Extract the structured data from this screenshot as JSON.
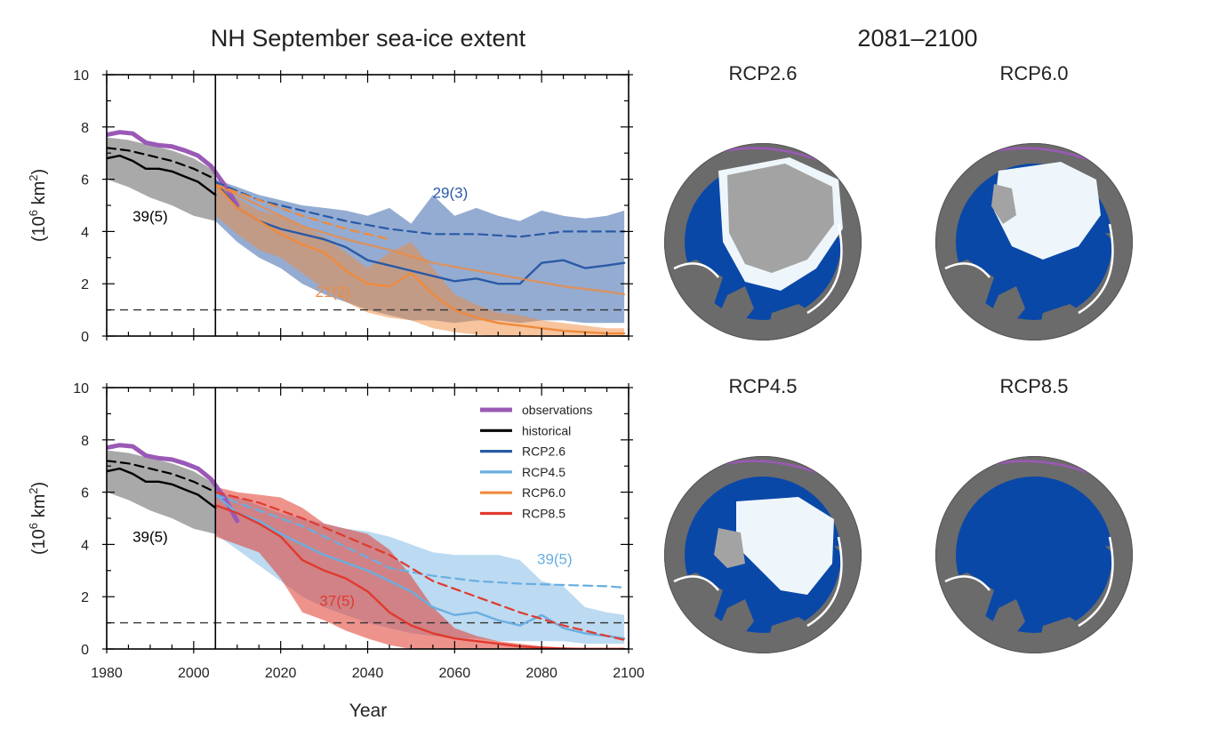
{
  "left_title": "NH September sea-ice extent",
  "right_title": "2081–2100",
  "x_axis_label": "Year",
  "y_axis_label_base": "(10",
  "y_axis_label_exp": "6",
  "y_axis_label_unit": " km",
  "y_axis_label_exp2": "2",
  "y_axis_label_close": ")",
  "colors": {
    "observations": "#9b59b6",
    "historical": "#000000",
    "rcp26": "#2a5aa6",
    "rcp45": "#6aaee0",
    "rcp60": "#f08a3c",
    "rcp85": "#e03a2e",
    "ocean": "#0a48a8",
    "land": "#6b6b6b",
    "ice_light": "#eef6fb",
    "ice_grey": "#a3a3a3"
  },
  "maps": [
    {
      "label": "RCP2.6"
    },
    {
      "label": "RCP6.0"
    },
    {
      "label": "RCP4.5"
    },
    {
      "label": "RCP8.5"
    }
  ],
  "chart_data": [
    {
      "type": "line",
      "panel": "top",
      "xlim": [
        1980,
        2100
      ],
      "ylim": [
        0,
        10
      ],
      "xticks": [
        1980,
        2000,
        2020,
        2040,
        2060,
        2080,
        2100
      ],
      "yticks": [
        0,
        2,
        4,
        6,
        8,
        10
      ],
      "reference_line": 1,
      "divider_year": 2005,
      "annotations": [
        {
          "text": "39(5)",
          "x": 1990,
          "y": 4.6,
          "color": "#000000"
        },
        {
          "text": "29(3)",
          "x": 2059,
          "y": 5.5,
          "color": "#2a5aa6"
        },
        {
          "text": "21(2)",
          "x": 2032,
          "y": 1.7,
          "color": "#f08a3c"
        }
      ],
      "series": [
        {
          "key": "observations",
          "style": "thick",
          "x": [
            1980,
            1983,
            1986,
            1989,
            1992,
            1995,
            1998,
            2001,
            2004,
            2007,
            2010
          ],
          "y": [
            7.7,
            7.8,
            7.75,
            7.4,
            7.3,
            7.25,
            7.1,
            6.9,
            6.5,
            5.8,
            5.0
          ]
        },
        {
          "key": "historical",
          "style": "solid",
          "x": [
            1980,
            1983,
            1986,
            1989,
            1992,
            1995,
            1998,
            2001,
            2005
          ],
          "y": [
            6.8,
            6.9,
            6.7,
            6.4,
            6.4,
            6.3,
            6.1,
            5.9,
            5.4
          ]
        },
        {
          "key": "historical",
          "style": "dashed",
          "x": [
            1980,
            1985,
            1990,
            1995,
            2000,
            2005
          ],
          "y": [
            7.2,
            7.1,
            6.9,
            6.7,
            6.4,
            6.0
          ]
        },
        {
          "key": "historical",
          "style": "band",
          "x": [
            1980,
            1985,
            1990,
            1995,
            2000,
            2005
          ],
          "upper": [
            7.6,
            7.5,
            7.3,
            7.1,
            6.8,
            6.3
          ],
          "lower": [
            6.0,
            5.7,
            5.3,
            5.0,
            4.6,
            4.4
          ]
        },
        {
          "key": "rcp26",
          "style": "band",
          "x": [
            2005,
            2010,
            2015,
            2020,
            2025,
            2030,
            2035,
            2040,
            2045,
            2050,
            2055,
            2060,
            2065,
            2070,
            2075,
            2080,
            2085,
            2090,
            2095,
            2099
          ],
          "upper": [
            6.0,
            5.7,
            5.4,
            5.2,
            5.0,
            4.9,
            4.8,
            4.6,
            4.9,
            4.3,
            5.4,
            4.6,
            4.9,
            4.6,
            4.4,
            4.8,
            4.6,
            4.5,
            4.6,
            4.8
          ],
          "lower": [
            4.4,
            3.6,
            3.0,
            2.6,
            2.0,
            1.6,
            1.3,
            1.0,
            0.8,
            0.6,
            0.6,
            0.5,
            0.6,
            0.6,
            0.5,
            0.6,
            0.6,
            0.5,
            0.5,
            0.5
          ]
        },
        {
          "key": "rcp60",
          "style": "band",
          "x": [
            2005,
            2010,
            2015,
            2020,
            2025,
            2030,
            2035,
            2040,
            2045,
            2050,
            2055,
            2060,
            2065,
            2070,
            2075,
            2080,
            2085,
            2090,
            2095,
            2099
          ],
          "upper": [
            5.8,
            5.3,
            4.8,
            4.6,
            4.2,
            3.8,
            3.2,
            2.6,
            3.2,
            3.6,
            2.6,
            1.6,
            1.2,
            0.9,
            0.8,
            0.6,
            0.5,
            0.4,
            0.3,
            0.3
          ],
          "lower": [
            4.6,
            3.9,
            3.3,
            3.0,
            2.4,
            1.8,
            1.3,
            0.9,
            0.7,
            0.6,
            0.3,
            0.15,
            0.05,
            0.0,
            0.0,
            0.0,
            0.0,
            0.0,
            0.0,
            0.0
          ]
        },
        {
          "key": "rcp26",
          "style": "solid",
          "x": [
            2005,
            2010,
            2015,
            2020,
            2025,
            2030,
            2035,
            2040,
            2045,
            2050,
            2055,
            2060,
            2065,
            2070,
            2075,
            2080,
            2085,
            2090,
            2095,
            2099
          ],
          "y": [
            5.9,
            4.9,
            4.4,
            4.1,
            3.9,
            3.7,
            3.4,
            2.9,
            2.7,
            2.5,
            2.3,
            2.1,
            2.2,
            2.0,
            2.0,
            2.8,
            2.9,
            2.6,
            2.7,
            2.8
          ]
        },
        {
          "key": "rcp26",
          "style": "dashed",
          "x": [
            2005,
            2015,
            2025,
            2035,
            2045,
            2055,
            2065,
            2075,
            2085,
            2095,
            2099
          ],
          "y": [
            5.9,
            5.2,
            4.8,
            4.4,
            4.1,
            3.9,
            3.9,
            3.8,
            4.0,
            4.0,
            4.0
          ]
        },
        {
          "key": "rcp60",
          "style": "solid",
          "x": [
            2005,
            2010,
            2015,
            2020,
            2025,
            2030,
            2035,
            2040,
            2045,
            2050,
            2055,
            2060,
            2065,
            2070,
            2075,
            2080,
            2085,
            2090,
            2095,
            2099
          ],
          "y": [
            5.8,
            4.9,
            4.4,
            3.9,
            3.5,
            3.2,
            2.5,
            2.0,
            1.9,
            2.4,
            1.6,
            1.0,
            0.7,
            0.5,
            0.4,
            0.3,
            0.2,
            0.15,
            0.1,
            0.1
          ]
        },
        {
          "key": "rcp60",
          "style": "solid_light",
          "x": [
            2005,
            2015,
            2025,
            2035,
            2045,
            2055,
            2065,
            2075,
            2085,
            2095,
            2099
          ],
          "y": [
            5.8,
            5.0,
            4.2,
            3.7,
            3.3,
            2.8,
            2.5,
            2.2,
            1.9,
            1.7,
            1.6
          ]
        },
        {
          "key": "rcp60",
          "style": "dashed",
          "x": [
            2005,
            2015,
            2025,
            2035,
            2045
          ],
          "y": [
            5.8,
            5.2,
            4.6,
            4.1,
            3.7
          ]
        }
      ]
    },
    {
      "type": "line",
      "panel": "bottom",
      "xlim": [
        1980,
        2100
      ],
      "ylim": [
        0,
        10
      ],
      "xticks": [
        1980,
        2000,
        2020,
        2040,
        2060,
        2080,
        2100
      ],
      "yticks": [
        0,
        2,
        4,
        6,
        8,
        10
      ],
      "reference_line": 1,
      "divider_year": 2005,
      "legend": {
        "placement": "top-right",
        "entries": [
          {
            "key": "observations",
            "label": "observations"
          },
          {
            "key": "historical",
            "label": "historical"
          },
          {
            "key": "rcp26",
            "label": "RCP2.6"
          },
          {
            "key": "rcp45",
            "label": "RCP4.5"
          },
          {
            "key": "rcp60",
            "label": "RCP6.0"
          },
          {
            "key": "rcp85",
            "label": "RCP8.5"
          }
        ]
      },
      "annotations": [
        {
          "text": "39(5)",
          "x": 1990,
          "y": 4.3,
          "color": "#000000"
        },
        {
          "text": "39(5)",
          "x": 2083,
          "y": 3.45,
          "color": "#6aaee0"
        },
        {
          "text": "37(5)",
          "x": 2033,
          "y": 1.85,
          "color": "#e03a2e"
        }
      ],
      "series": [
        {
          "key": "observations",
          "style": "thick",
          "x": [
            1980,
            1983,
            1986,
            1989,
            1992,
            1995,
            1998,
            2001,
            2004,
            2007,
            2010
          ],
          "y": [
            7.7,
            7.8,
            7.75,
            7.4,
            7.3,
            7.25,
            7.1,
            6.9,
            6.5,
            5.8,
            4.9
          ]
        },
        {
          "key": "historical",
          "style": "solid",
          "x": [
            1980,
            1983,
            1986,
            1989,
            1992,
            1995,
            1998,
            2001,
            2005
          ],
          "y": [
            6.8,
            6.9,
            6.7,
            6.4,
            6.4,
            6.3,
            6.1,
            5.9,
            5.4
          ]
        },
        {
          "key": "historical",
          "style": "dashed",
          "x": [
            1980,
            1985,
            1990,
            1995,
            2000,
            2005
          ],
          "y": [
            7.2,
            7.1,
            6.9,
            6.7,
            6.4,
            6.0
          ]
        },
        {
          "key": "historical",
          "style": "band",
          "x": [
            1980,
            1985,
            1990,
            1995,
            2000,
            2005
          ],
          "upper": [
            7.6,
            7.5,
            7.3,
            7.1,
            6.8,
            6.3
          ],
          "lower": [
            6.0,
            5.7,
            5.3,
            5.0,
            4.6,
            4.4
          ]
        },
        {
          "key": "rcp45",
          "style": "band",
          "x": [
            2005,
            2010,
            2015,
            2020,
            2025,
            2030,
            2035,
            2040,
            2045,
            2050,
            2055,
            2060,
            2065,
            2070,
            2075,
            2080,
            2085,
            2090,
            2095,
            2099
          ],
          "upper": [
            6.0,
            5.8,
            5.5,
            5.2,
            5.0,
            4.8,
            4.6,
            4.5,
            4.3,
            4.0,
            3.7,
            3.6,
            3.6,
            3.6,
            3.4,
            2.6,
            2.4,
            1.6,
            1.4,
            1.3
          ],
          "lower": [
            4.4,
            3.8,
            3.2,
            2.6,
            2.0,
            1.6,
            1.3,
            1.0,
            0.8,
            0.6,
            0.5,
            0.4,
            0.4,
            0.3,
            0.3,
            0.3,
            0.3,
            0.2,
            0.2,
            0.2
          ]
        },
        {
          "key": "rcp85",
          "style": "band",
          "x": [
            2005,
            2010,
            2015,
            2020,
            2025,
            2030,
            2035,
            2040,
            2045,
            2050,
            2055,
            2060,
            2065,
            2070,
            2075,
            2080,
            2085,
            2090,
            2095,
            2099
          ],
          "upper": [
            6.2,
            6.0,
            5.9,
            5.8,
            5.4,
            4.8,
            4.6,
            4.4,
            3.8,
            2.8,
            1.6,
            0.8,
            0.5,
            0.3,
            0.2,
            0.1,
            0.05,
            0.05,
            0.05,
            0.05
          ],
          "lower": [
            4.3,
            4.0,
            3.7,
            2.7,
            1.4,
            1.1,
            0.7,
            0.4,
            0.15,
            0.0,
            0.0,
            0.0,
            0.0,
            0.0,
            0.0,
            0.0,
            0.0,
            0.0,
            0.0,
            0.0
          ]
        },
        {
          "key": "rcp45",
          "style": "solid",
          "x": [
            2005,
            2010,
            2015,
            2020,
            2025,
            2030,
            2035,
            2040,
            2045,
            2050,
            2055,
            2060,
            2065,
            2070,
            2075,
            2080,
            2085,
            2090,
            2095,
            2099
          ],
          "y": [
            5.9,
            5.2,
            4.9,
            4.4,
            4.0,
            3.6,
            3.3,
            3.0,
            2.6,
            2.2,
            1.6,
            1.3,
            1.4,
            1.1,
            0.9,
            1.3,
            0.8,
            0.6,
            0.5,
            0.4
          ]
        },
        {
          "key": "rcp45",
          "style": "dashed",
          "x": [
            2005,
            2015,
            2025,
            2035,
            2045,
            2055,
            2065,
            2075,
            2085,
            2095,
            2099
          ],
          "y": [
            5.9,
            5.3,
            4.7,
            3.9,
            3.1,
            2.8,
            2.6,
            2.5,
            2.45,
            2.4,
            2.35
          ]
        },
        {
          "key": "rcp85",
          "style": "solid",
          "x": [
            2005,
            2010,
            2015,
            2020,
            2025,
            2030,
            2035,
            2040,
            2045,
            2050,
            2055,
            2060,
            2065,
            2070,
            2075,
            2080,
            2085,
            2090,
            2095,
            2099
          ],
          "y": [
            5.5,
            5.2,
            4.8,
            4.3,
            3.4,
            3.0,
            2.7,
            2.2,
            1.4,
            0.9,
            0.6,
            0.4,
            0.3,
            0.2,
            0.1,
            0.05,
            0.02,
            0.0,
            0.0,
            0.0
          ]
        },
        {
          "key": "rcp85",
          "style": "dashed",
          "x": [
            2005,
            2015,
            2025,
            2035,
            2045,
            2055,
            2065,
            2075,
            2085,
            2095,
            2099
          ],
          "y": [
            6.0,
            5.6,
            5.0,
            4.3,
            3.6,
            2.6,
            2.0,
            1.4,
            0.9,
            0.5,
            0.35
          ]
        }
      ]
    }
  ]
}
